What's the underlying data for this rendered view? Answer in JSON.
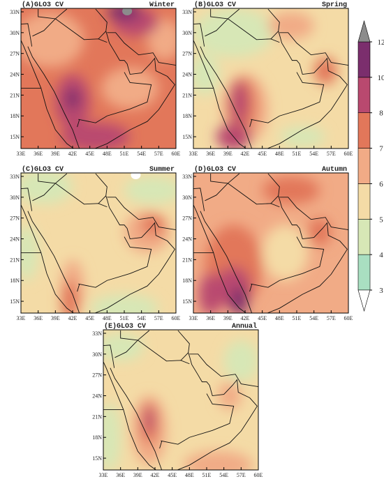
{
  "panels": [
    {
      "label": "(A)GLO3 CV",
      "season": "Winter"
    },
    {
      "label": "(B)GLO3 CV",
      "season": "Spring"
    },
    {
      "label": "(C)GLO3 CV",
      "season": "Summer"
    },
    {
      "label": "(D)GLO3 CV",
      "season": "Autumn"
    },
    {
      "label": "(E)GLO3 CV",
      "season": "Annual"
    }
  ],
  "lat_ticks": [
    "15N",
    "18N",
    "21N",
    "24N",
    "27N",
    "30N",
    "33N"
  ],
  "lon_ticks": [
    "33E",
    "36E",
    "39E",
    "42E",
    "45E",
    "48E",
    "51E",
    "54E",
    "57E",
    "60E"
  ],
  "colorbar": {
    "ticks": [
      3,
      4,
      5,
      6,
      7,
      8,
      10,
      12
    ],
    "colors": [
      "#a9dfc1",
      "#d7e7b6",
      "#f4dba6",
      "#f1ab86",
      "#e2775a",
      "#b9496f",
      "#7b2e6d"
    ],
    "under_color": "#ffffff",
    "over_color": "#8c8c8c"
  }
}
